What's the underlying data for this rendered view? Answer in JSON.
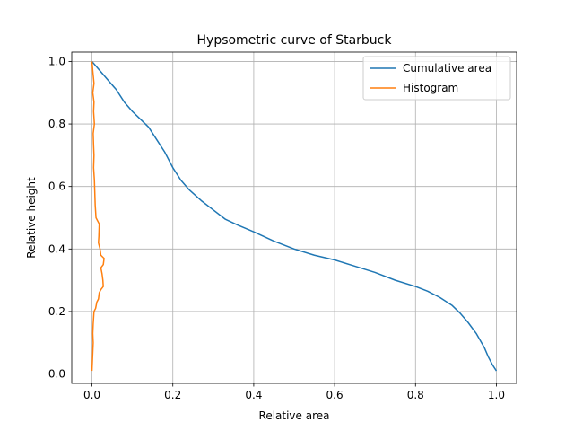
{
  "chart_data": {
    "type": "line",
    "title": "Hypsometric curve of Starbuck",
    "xlabel": "Relative area",
    "ylabel": "Relative height",
    "xlim": [
      -0.05,
      1.05
    ],
    "ylim": [
      -0.03,
      1.03
    ],
    "xticks": [
      0.0,
      0.2,
      0.4,
      0.6,
      0.8,
      1.0
    ],
    "xtick_labels": [
      "0.0",
      "0.2",
      "0.4",
      "0.6",
      "0.8",
      "1.0"
    ],
    "yticks": [
      0.0,
      0.2,
      0.4,
      0.6,
      0.8,
      1.0
    ],
    "ytick_labels": [
      "0.0",
      "0.2",
      "0.4",
      "0.6",
      "0.8",
      "1.0"
    ],
    "grid": true,
    "legend_position": "top-right",
    "series": [
      {
        "name": "Cumulative area",
        "color": "#1f77b4",
        "points": [
          [
            0.0,
            1.0
          ],
          [
            0.02,
            0.97
          ],
          [
            0.04,
            0.94
          ],
          [
            0.06,
            0.91
          ],
          [
            0.08,
            0.87
          ],
          [
            0.1,
            0.84
          ],
          [
            0.12,
            0.815
          ],
          [
            0.14,
            0.79
          ],
          [
            0.16,
            0.75
          ],
          [
            0.18,
            0.71
          ],
          [
            0.2,
            0.66
          ],
          [
            0.22,
            0.62
          ],
          [
            0.24,
            0.59
          ],
          [
            0.27,
            0.555
          ],
          [
            0.3,
            0.525
          ],
          [
            0.33,
            0.495
          ],
          [
            0.36,
            0.477
          ],
          [
            0.4,
            0.455
          ],
          [
            0.45,
            0.425
          ],
          [
            0.5,
            0.4
          ],
          [
            0.55,
            0.38
          ],
          [
            0.6,
            0.365
          ],
          [
            0.65,
            0.345
          ],
          [
            0.7,
            0.325
          ],
          [
            0.75,
            0.3
          ],
          [
            0.8,
            0.28
          ],
          [
            0.83,
            0.265
          ],
          [
            0.86,
            0.245
          ],
          [
            0.89,
            0.22
          ],
          [
            0.91,
            0.195
          ],
          [
            0.93,
            0.165
          ],
          [
            0.95,
            0.13
          ],
          [
            0.97,
            0.085
          ],
          [
            0.98,
            0.055
          ],
          [
            0.99,
            0.03
          ],
          [
            1.0,
            0.01
          ]
        ]
      },
      {
        "name": "Histogram",
        "color": "#ff7f0e",
        "points": [
          [
            0.0,
            1.0
          ],
          [
            0.002,
            0.97
          ],
          [
            0.005,
            0.93
          ],
          [
            0.002,
            0.9
          ],
          [
            0.005,
            0.87
          ],
          [
            0.004,
            0.84
          ],
          [
            0.006,
            0.8
          ],
          [
            0.003,
            0.77
          ],
          [
            0.004,
            0.73
          ],
          [
            0.005,
            0.7
          ],
          [
            0.004,
            0.66
          ],
          [
            0.006,
            0.62
          ],
          [
            0.007,
            0.58
          ],
          [
            0.008,
            0.54
          ],
          [
            0.01,
            0.5
          ],
          [
            0.018,
            0.48
          ],
          [
            0.017,
            0.44
          ],
          [
            0.016,
            0.42
          ],
          [
            0.02,
            0.4
          ],
          [
            0.022,
            0.38
          ],
          [
            0.03,
            0.37
          ],
          [
            0.028,
            0.35
          ],
          [
            0.022,
            0.34
          ],
          [
            0.025,
            0.32
          ],
          [
            0.027,
            0.3
          ],
          [
            0.028,
            0.28
          ],
          [
            0.022,
            0.27
          ],
          [
            0.018,
            0.26
          ],
          [
            0.016,
            0.24
          ],
          [
            0.012,
            0.23
          ],
          [
            0.009,
            0.21
          ],
          [
            0.005,
            0.2
          ],
          [
            0.004,
            0.18
          ],
          [
            0.003,
            0.16
          ],
          [
            0.002,
            0.13
          ],
          [
            0.003,
            0.1
          ],
          [
            0.002,
            0.07
          ],
          [
            0.001,
            0.04
          ],
          [
            0.0,
            0.01
          ]
        ]
      }
    ]
  }
}
